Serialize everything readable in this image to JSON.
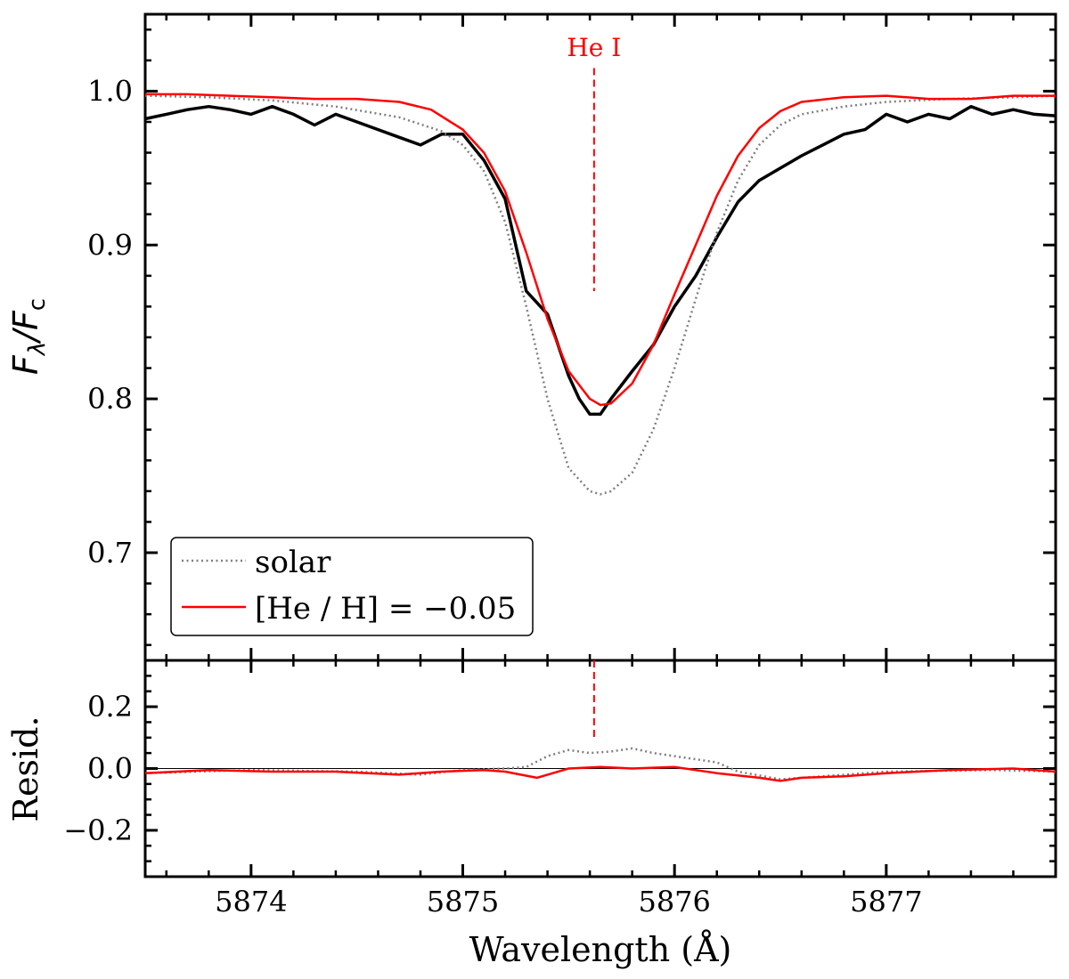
{
  "chart_data": {
    "type": "line",
    "xlabel": "Wavelength (Å)",
    "xlim": [
      5873.5,
      5877.8
    ],
    "xticks": [
      5874,
      5875,
      5876,
      5877
    ],
    "xtick_labels": [
      "5874",
      "5875",
      "5876",
      "5877"
    ],
    "annotation": {
      "label": "He I",
      "x": 5875.62,
      "color": "#ff0000"
    },
    "legend": {
      "placement": "bottom-left",
      "entries": [
        "solar",
        "[He / H] = −0.05"
      ]
    },
    "top_panel": {
      "ylabel": "Fλ/Fc",
      "ylim": [
        0.63,
        1.05
      ],
      "yticks": [
        0.7,
        0.8,
        0.9,
        1.0
      ],
      "ytick_labels": [
        "0.7",
        "0.8",
        "0.9",
        "1.0"
      ],
      "annotation_ymin": 0.87,
      "annotation_ymax": 1.015,
      "series": [
        {
          "name": "observed",
          "color": "#000000",
          "style": "solid",
          "x": [
            5873.5,
            5873.6,
            5873.7,
            5873.8,
            5873.9,
            5874.0,
            5874.1,
            5874.2,
            5874.3,
            5874.4,
            5874.5,
            5874.6,
            5874.7,
            5874.8,
            5874.9,
            5875.0,
            5875.1,
            5875.2,
            5875.3,
            5875.4,
            5875.5,
            5875.55,
            5875.6,
            5875.65,
            5875.7,
            5875.8,
            5875.9,
            5876.0,
            5876.1,
            5876.2,
            5876.3,
            5876.4,
            5876.5,
            5876.6,
            5876.7,
            5876.8,
            5876.9,
            5877.0,
            5877.1,
            5877.2,
            5877.3,
            5877.4,
            5877.5,
            5877.6,
            5877.7,
            5877.8
          ],
          "y": [
            0.982,
            0.985,
            0.988,
            0.99,
            0.988,
            0.985,
            0.99,
            0.985,
            0.978,
            0.985,
            0.98,
            0.975,
            0.97,
            0.965,
            0.972,
            0.972,
            0.955,
            0.93,
            0.87,
            0.855,
            0.815,
            0.8,
            0.79,
            0.79,
            0.8,
            0.818,
            0.835,
            0.86,
            0.88,
            0.905,
            0.928,
            0.942,
            0.95,
            0.958,
            0.965,
            0.972,
            0.975,
            0.985,
            0.98,
            0.985,
            0.982,
            0.99,
            0.985,
            0.988,
            0.985,
            0.984
          ]
        },
        {
          "name": "solar",
          "color": "#7f7f7f",
          "style": "dotted",
          "x": [
            5873.5,
            5873.8,
            5874.1,
            5874.4,
            5874.7,
            5874.9,
            5875.0,
            5875.1,
            5875.2,
            5875.3,
            5875.4,
            5875.5,
            5875.6,
            5875.65,
            5875.7,
            5875.8,
            5875.9,
            5876.0,
            5876.1,
            5876.2,
            5876.3,
            5876.4,
            5876.5,
            5876.6,
            5876.8,
            5877.0,
            5877.3,
            5877.6,
            5877.8
          ],
          "y": [
            0.997,
            0.996,
            0.994,
            0.99,
            0.983,
            0.974,
            0.965,
            0.948,
            0.915,
            0.86,
            0.8,
            0.755,
            0.74,
            0.738,
            0.74,
            0.752,
            0.78,
            0.82,
            0.865,
            0.908,
            0.942,
            0.965,
            0.978,
            0.985,
            0.99,
            0.993,
            0.995,
            0.996,
            0.997
          ]
        },
        {
          "name": "[He / H] = −0.05",
          "color": "#ff0000",
          "style": "solid",
          "x": [
            5873.5,
            5873.7,
            5873.9,
            5874.1,
            5874.3,
            5874.5,
            5874.7,
            5874.85,
            5875.0,
            5875.1,
            5875.2,
            5875.3,
            5875.4,
            5875.5,
            5875.6,
            5875.65,
            5875.7,
            5875.8,
            5875.9,
            5876.0,
            5876.1,
            5876.2,
            5876.3,
            5876.4,
            5876.5,
            5876.6,
            5876.8,
            5877.0,
            5877.2,
            5877.4,
            5877.6,
            5877.8
          ],
          "y": [
            0.998,
            0.998,
            0.997,
            0.996,
            0.995,
            0.995,
            0.993,
            0.988,
            0.975,
            0.96,
            0.935,
            0.895,
            0.852,
            0.818,
            0.8,
            0.796,
            0.797,
            0.81,
            0.835,
            0.868,
            0.9,
            0.932,
            0.958,
            0.976,
            0.987,
            0.993,
            0.996,
            0.997,
            0.995,
            0.995,
            0.997,
            0.997
          ]
        }
      ]
    },
    "bottom_panel": {
      "ylabel": "Resid.",
      "ylim": [
        -0.35,
        0.35
      ],
      "yticks": [
        -0.2,
        0.0,
        0.2
      ],
      "ytick_labels": [
        "−0.2",
        "0.0",
        "0.2"
      ],
      "zero_line": true,
      "annotation_ymin": 0.1,
      "annotation_ymax": 0.35,
      "series": [
        {
          "name": "solar residual",
          "color": "#7f7f7f",
          "style": "dotted",
          "x": [
            5873.5,
            5874.0,
            5874.5,
            5874.8,
            5875.0,
            5875.2,
            5875.3,
            5875.4,
            5875.5,
            5875.6,
            5875.7,
            5875.8,
            5875.9,
            5876.0,
            5876.1,
            5876.2,
            5876.3,
            5876.5,
            5876.7,
            5877.0,
            5877.5,
            5877.8
          ],
          "y": [
            -0.015,
            -0.005,
            -0.01,
            -0.02,
            -0.005,
            0.0,
            0.005,
            0.04,
            0.06,
            0.05,
            0.055,
            0.065,
            0.05,
            0.04,
            0.03,
            0.02,
            -0.01,
            -0.035,
            -0.025,
            -0.01,
            -0.005,
            -0.01
          ]
        },
        {
          "name": "[He / H] residual",
          "color": "#ff0000",
          "style": "solid",
          "x": [
            5873.5,
            5873.8,
            5874.1,
            5874.4,
            5874.7,
            5874.9,
            5875.1,
            5875.2,
            5875.35,
            5875.5,
            5875.65,
            5875.8,
            5876.0,
            5876.2,
            5876.4,
            5876.5,
            5876.6,
            5876.8,
            5877.0,
            5877.3,
            5877.6,
            5877.8
          ],
          "y": [
            -0.015,
            -0.005,
            -0.01,
            -0.01,
            -0.02,
            -0.01,
            -0.005,
            -0.01,
            -0.03,
            0.0,
            0.005,
            0.0,
            0.005,
            -0.015,
            -0.03,
            -0.04,
            -0.03,
            -0.025,
            -0.015,
            -0.005,
            0.0,
            -0.01
          ]
        }
      ]
    }
  }
}
